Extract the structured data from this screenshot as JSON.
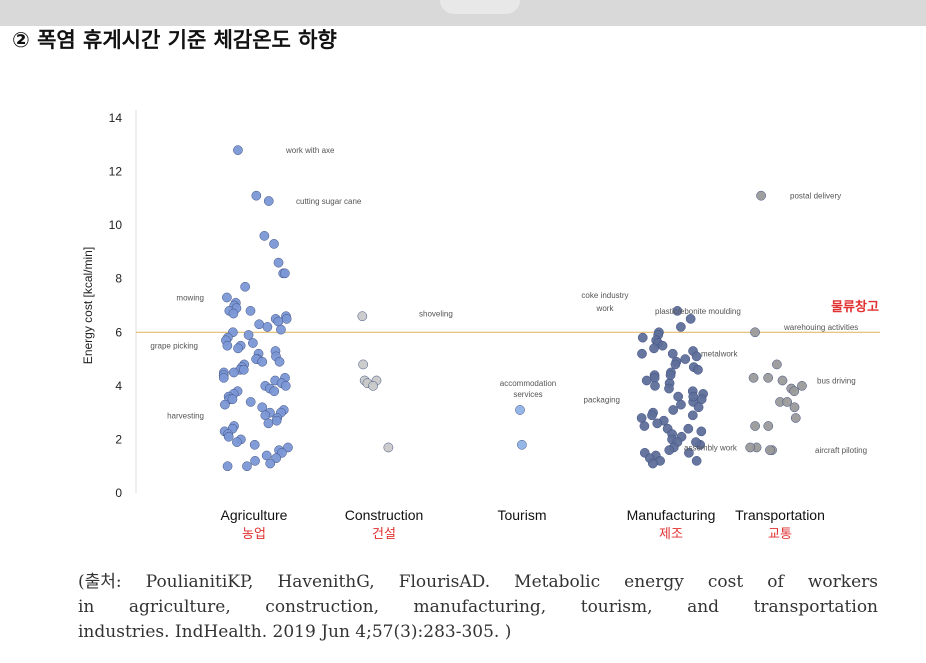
{
  "heading": "② 폭염 휴게시간 기준 체감온도 하향",
  "citation": {
    "line1": "(출처: PoulianitiKP, HavenithG, FlourisAD. Metabolic energy cost of workers",
    "line2": "in agriculture, construction, manufacturing, tourism, and transportation",
    "line3": "industries. IndHealth. 2019 Jun 4;57(3):283-305. )"
  },
  "chart_data": {
    "type": "scatter",
    "title": "",
    "ylabel": "Energy cost [kcal/min]",
    "xlabel": "",
    "ylim": [
      0,
      14
    ],
    "yticks": [
      0,
      2,
      4,
      6,
      8,
      10,
      12,
      14
    ],
    "reference_line": {
      "y": 6,
      "color": "#e0b15a"
    },
    "highlight_label": {
      "text": "물류창고",
      "color": "#e03030",
      "category": "Transportation"
    },
    "categories": [
      {
        "name": "Agriculture",
        "korean": "농업",
        "color": "#7b97d6",
        "values": [
          12.8,
          11.1,
          10.9,
          9.6,
          9.3,
          8.6,
          8.2,
          8.2,
          7.7,
          7.3,
          7.1,
          7.0,
          6.9,
          6.8,
          6.8,
          6.7,
          6.6,
          6.5,
          6.5,
          6.4,
          6.3,
          6.2,
          6.1,
          6.0,
          5.9,
          5.8,
          5.7,
          5.6,
          5.5,
          5.5,
          5.4,
          5.3,
          5.2,
          5.1,
          5.0,
          5.0,
          4.9,
          4.9,
          4.8,
          4.7,
          4.6,
          4.6,
          4.5,
          4.5,
          4.4,
          4.3,
          4.3,
          4.2,
          4.1,
          4.0,
          4.0,
          3.9,
          3.8,
          3.8,
          3.7,
          3.6,
          3.5,
          3.5,
          3.4,
          3.3,
          3.2,
          3.1,
          3.0,
          3.0,
          2.9,
          2.8,
          2.7,
          2.6,
          2.5,
          2.4,
          2.3,
          2.2,
          2.1,
          2.0,
          1.9,
          1.8,
          1.7,
          1.6,
          1.5,
          1.4,
          1.3,
          1.2,
          1.1,
          1.0,
          1.0
        ]
      },
      {
        "name": "Construction",
        "korean": "건설",
        "color": "#c9c9c9",
        "values": [
          6.6,
          4.8,
          4.2,
          4.2,
          4.1,
          4.0,
          1.7
        ]
      },
      {
        "name": "Tourism",
        "korean": "",
        "color": "#8fb3e6",
        "values": [
          3.1,
          1.8
        ]
      },
      {
        "name": "Manufacturing",
        "korean": "제조",
        "color": "#5e6f9a",
        "values": [
          6.8,
          6.5,
          6.2,
          6.0,
          5.9,
          5.8,
          5.7,
          5.6,
          5.5,
          5.4,
          5.3,
          5.2,
          5.1,
          5.0,
          4.9,
          4.8,
          4.7,
          4.6,
          4.5,
          4.4,
          4.3,
          4.2,
          4.1,
          4.0,
          3.9,
          3.8,
          3.7,
          3.6,
          3.5,
          3.4,
          3.3,
          3.2,
          3.1,
          3.0,
          2.9,
          2.8,
          2.7,
          2.6,
          2.5,
          2.4,
          2.3,
          2.2,
          2.1,
          2.0,
          1.9,
          1.8,
          1.7,
          1.6,
          1.5,
          1.4,
          1.3,
          1.2,
          1.1,
          5.2,
          4.4,
          3.6,
          2.9,
          2.4,
          1.9,
          1.5,
          1.2
        ]
      },
      {
        "name": "Transportation",
        "korean": "교통",
        "color": "#9a9a9a",
        "values": [
          11.1,
          6.0,
          4.8,
          4.3,
          4.3,
          4.2,
          4.0,
          3.9,
          3.8,
          3.4,
          3.4,
          3.2,
          2.8,
          2.5,
          2.5,
          1.7,
          1.7,
          1.6,
          1.6
        ]
      }
    ],
    "annotations": [
      {
        "text": "work with axe",
        "category": "Agriculture",
        "y": 12.8
      },
      {
        "text": "cutting sugar cane",
        "category": "Agriculture",
        "y": 10.9
      },
      {
        "text": "mowing",
        "category": "Agriculture",
        "y": 7.3
      },
      {
        "text": "grape picking",
        "category": "Agriculture",
        "y": 5.5
      },
      {
        "text": "harvesting",
        "category": "Agriculture",
        "y": 2.9
      },
      {
        "text": "shoveling",
        "category": "Construction",
        "y": 6.7
      },
      {
        "text": "accommodation",
        "category": "Tourism",
        "y": 4.1
      },
      {
        "text": "services",
        "category": "Tourism",
        "y": 3.7
      },
      {
        "text": "coke industry",
        "category": "Manufacturing",
        "y": 7.4
      },
      {
        "text": "work",
        "category": "Manufacturing",
        "y": 6.9
      },
      {
        "text": "plastic/ebonite moulding",
        "category": "Manufacturing",
        "y": 6.8
      },
      {
        "text": "metalwork",
        "category": "Manufacturing",
        "y": 5.2
      },
      {
        "text": "packaging",
        "category": "Manufacturing",
        "y": 3.5
      },
      {
        "text": "assembly work",
        "category": "Manufacturing",
        "y": 1.7
      },
      {
        "text": "postal delivery",
        "category": "Transportation",
        "y": 11.1
      },
      {
        "text": "warehouing activities",
        "category": "Transportation",
        "y": 6.2
      },
      {
        "text": "bus driving",
        "category": "Transportation",
        "y": 4.2
      },
      {
        "text": "aircraft piloting",
        "category": "Transportation",
        "y": 1.6
      }
    ]
  }
}
